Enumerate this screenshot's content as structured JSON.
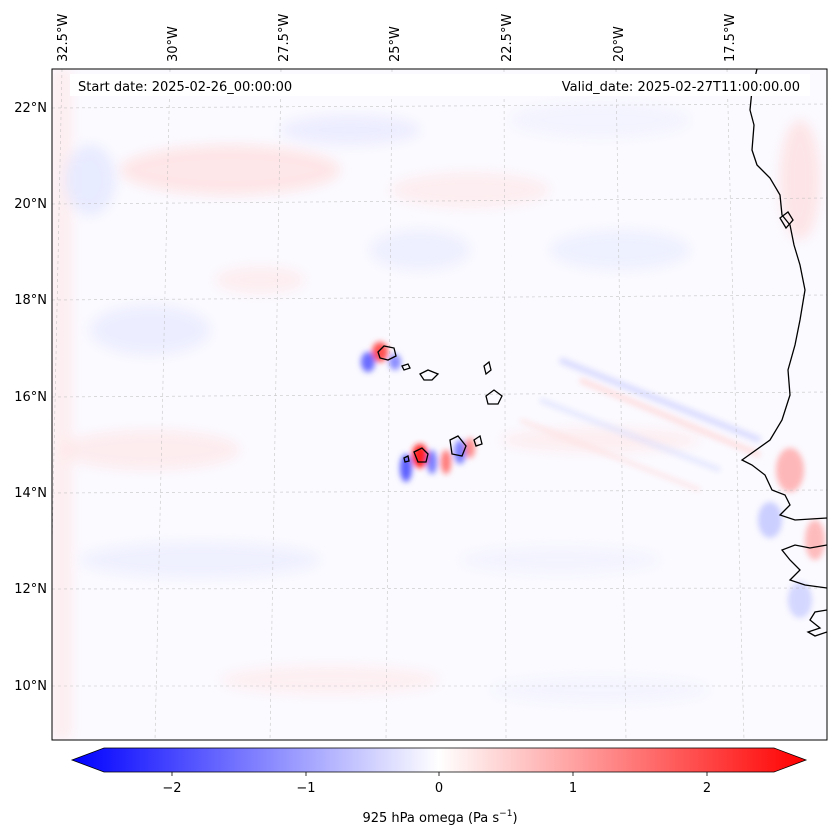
{
  "header": {
    "start_date": "Start date: 2025-02-26_00:00:00",
    "valid_date": "Valid_date: 2025-02-27T11:00:00.00"
  },
  "axes": {
    "lon_ticks": [
      "32.5°W",
      "30°W",
      "27.5°W",
      "25°W",
      "22.5°W",
      "20°W",
      "17.5°W"
    ],
    "lat_ticks": [
      "22°N",
      "20°N",
      "18°N",
      "16°N",
      "14°N",
      "12°N",
      "10°N"
    ]
  },
  "colorbar": {
    "label_main": "925 hPa omega (Pa s",
    "label_sup": "−1",
    "label_end": ")",
    "ticks": [
      "−2",
      "−1",
      "0",
      "1",
      "2"
    ],
    "range": [
      -2.75,
      2.75
    ],
    "colors": {
      "neg": "#0000ff",
      "zero": "#ffffff",
      "pos": "#ff0000"
    }
  },
  "chart_data": {
    "type": "heatmap",
    "field": "omega",
    "level": "925 hPa",
    "units": "Pa s^-1",
    "extent_lon": [
      -33.0,
      -15.2
    ],
    "extent_lat": [
      8.9,
      22.8
    ],
    "cmap": "bwr",
    "vmin": -2.75,
    "vmax": 2.75,
    "gridlines": true,
    "coastlines": true
  }
}
